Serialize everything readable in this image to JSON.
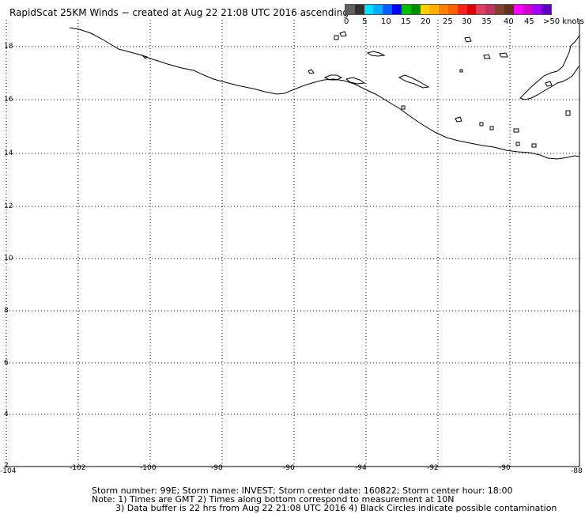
{
  "title": "RapidScat 25KM Winds − created at Aug 22 21:08 UTC 2016 ascending",
  "legend": {
    "labels": [
      "0",
      "5",
      "10",
      "15",
      "20",
      "25",
      "30",
      "35",
      "40",
      "45",
      ">50 knots"
    ],
    "colors": [
      "#606060",
      "#00e0ff",
      "#0090ff",
      "#0000ff",
      "#00c000",
      "#ffd000",
      "#ff8000",
      "#ff2020",
      "#e04060",
      "#804030",
      "#ff00ff",
      "#a000ff",
      "#6000c0"
    ]
  },
  "map": {
    "lon_ticks": [
      "-104",
      "-102",
      "-100",
      "-98",
      "-96",
      "-94",
      "-92",
      "-90",
      "-88"
    ],
    "lat_ticks": [
      "18",
      "16",
      "14",
      "12",
      "10",
      "8",
      "6",
      "4",
      "2"
    ],
    "lon_range": [
      -104,
      -88
    ],
    "lat_range": [
      2,
      18.7
    ],
    "grid": true,
    "coastline_color": "#000000"
  },
  "footer": {
    "line1": "Storm number: 99E;  Storm name: INVEST;  Storm center date: 160822;  Storm center hour: 18:00",
    "line2": "Note: 1) Times are GMT  2) Times along bottom correspond to measurement at 10N",
    "line3": "3) Data buffer is 22 hrs from Aug 22 21:08 UTC 2016   4) Black Circles indicate possible contamination"
  }
}
